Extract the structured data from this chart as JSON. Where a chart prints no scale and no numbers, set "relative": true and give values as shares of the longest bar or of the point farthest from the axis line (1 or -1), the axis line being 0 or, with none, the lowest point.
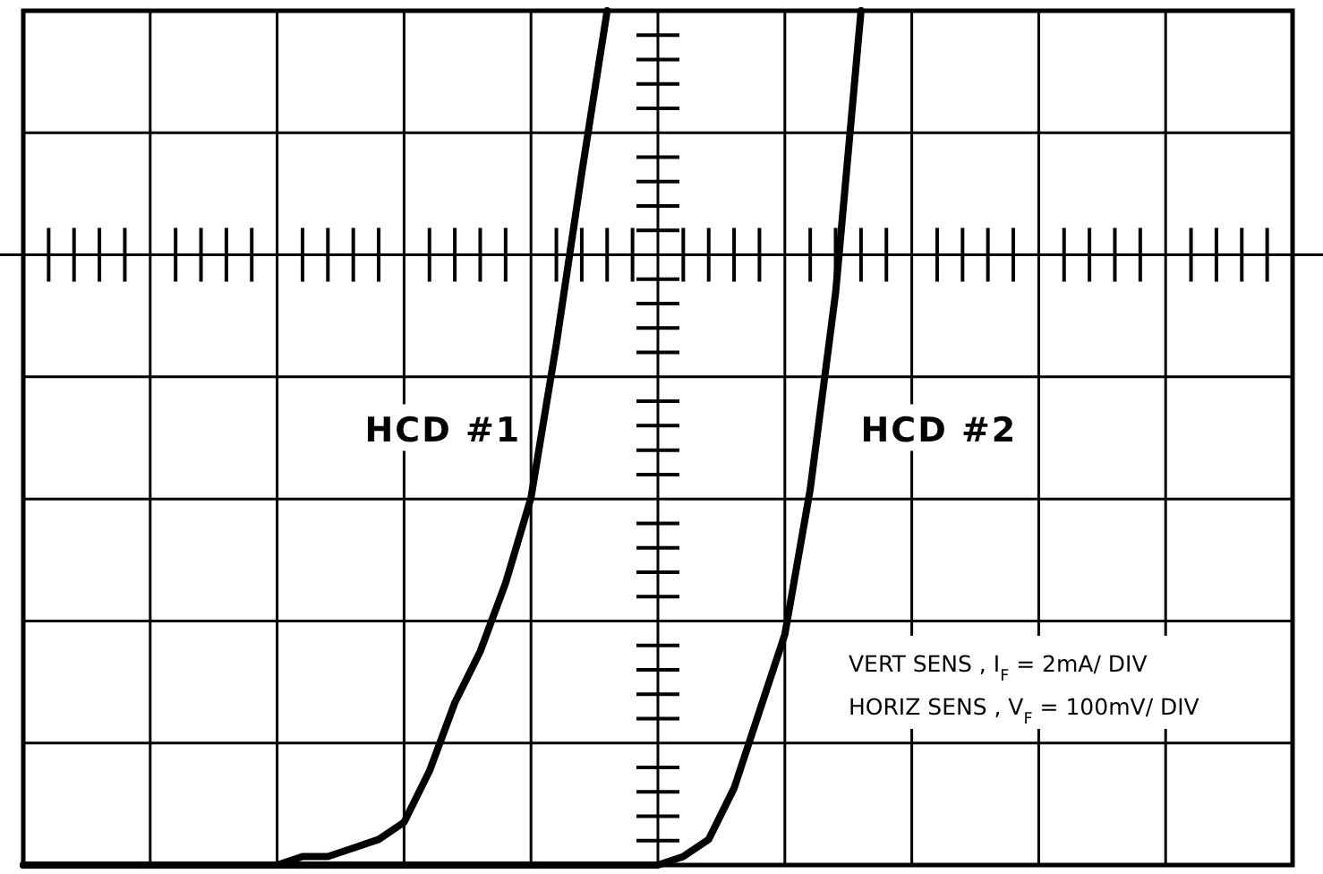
{
  "chart_data": {
    "type": "line",
    "relative": true,
    "grid": true,
    "marker": "none",
    "line_style": "solid",
    "categories": [
      null,
      null,
      null,
      null,
      null,
      null,
      null,
      null,
      null,
      null,
      null,
      null,
      null,
      null,
      null,
      null,
      null,
      null,
      null,
      null,
      null,
      null,
      null,
      null,
      null,
      null,
      null,
      null,
      null,
      null,
      null,
      null,
      null,
      null,
      null,
      null,
      null,
      null,
      null,
      null,
      null,
      null,
      null,
      null,
      null,
      null,
      null,
      null,
      null,
      null,
      null
    ],
    "series": [
      {
        "name": "HCD #1",
        "color": "#000000",
        "values": [
          0,
          0,
          0,
          0,
          0,
          0,
          0,
          0,
          0,
          0,
          0,
          0.01,
          0.01,
          0.02,
          0.03,
          0.05,
          0.11,
          0.19,
          0.25,
          0.33,
          0.43,
          0.61,
          0.81,
          1,
          null,
          null,
          null,
          null,
          null,
          null,
          null,
          null,
          null,
          null,
          null,
          null,
          null,
          null,
          null,
          null,
          null,
          null,
          null,
          null,
          null,
          null,
          null,
          null,
          null,
          null,
          null
        ]
      },
      {
        "name": "HCD #2",
        "color": "#000000",
        "values": [
          0,
          0,
          0,
          0,
          0,
          0,
          0,
          0,
          0,
          0,
          0,
          0,
          0,
          0,
          0,
          0,
          0,
          0,
          0,
          0,
          0,
          0,
          0,
          0,
          0,
          0,
          0.01,
          0.03,
          0.09,
          0.18,
          0.27,
          0.44,
          0.67,
          1,
          null,
          null,
          null,
          null,
          null,
          null,
          null,
          null,
          null,
          null,
          null,
          null,
          null,
          null,
          null,
          null,
          null
        ]
      }
    ],
    "annotations": [
      "VERT SENS , I$_{F}$ = 2mA/ DIV",
      "HORIZ SENS , V$_{F}$ = 100mV/ DIV"
    ]
  }
}
